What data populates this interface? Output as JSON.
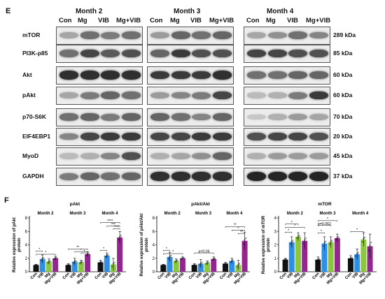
{
  "panel_e": {
    "letter": "E",
    "months": [
      "Month 2",
      "Month 3",
      "Month 4"
    ],
    "lanes": [
      "Con",
      "Mg",
      "VIB",
      "Mg+VIB"
    ],
    "rows": [
      {
        "label": "mTOR",
        "kda": "289 kDa",
        "intensity": [
          [
            0.3,
            0.55,
            0.5,
            0.55
          ],
          [
            0.35,
            0.6,
            0.55,
            0.6
          ],
          [
            0.3,
            0.4,
            0.55,
            0.45
          ]
        ]
      },
      {
        "label": "PI3K-p85",
        "kda": "85 kDa",
        "intensity": [
          [
            0.55,
            0.75,
            0.65,
            0.7
          ],
          [
            0.6,
            0.8,
            0.7,
            0.7
          ],
          [
            0.75,
            0.75,
            0.7,
            0.7
          ]
        ]
      },
      {
        "label": "Akt",
        "kda": "60 kDa",
        "intensity": [
          [
            0.85,
            0.85,
            0.85,
            0.85
          ],
          [
            0.8,
            0.8,
            0.8,
            0.85
          ],
          [
            0.55,
            0.55,
            0.6,
            0.6
          ]
        ]
      },
      {
        "label": "pAkt",
        "kda": "60 kDa",
        "intensity": [
          [
            0.3,
            0.5,
            0.6,
            0.55
          ],
          [
            0.35,
            0.45,
            0.5,
            0.75
          ],
          [
            0.2,
            0.25,
            0.5,
            0.8
          ]
        ]
      },
      {
        "label": "p70-S6K",
        "kda": "70 kDa",
        "intensity": [
          [
            0.55,
            0.6,
            0.5,
            0.6
          ],
          [
            0.6,
            0.55,
            0.45,
            0.6
          ],
          [
            0.15,
            0.25,
            0.35,
            0.3
          ]
        ]
      },
      {
        "label": "EIF4EBP1",
        "kda": "20 kDa",
        "intensity": [
          [
            0.45,
            0.75,
            0.8,
            0.8
          ],
          [
            0.75,
            0.75,
            0.8,
            0.8
          ],
          [
            0.7,
            0.75,
            0.75,
            0.7
          ]
        ]
      },
      {
        "label": "MyoD",
        "kda": "45 kDa",
        "intensity": [
          [
            0.2,
            0.25,
            0.45,
            0.7
          ],
          [
            0.25,
            0.3,
            0.4,
            0.6
          ],
          [
            0.25,
            0.35,
            0.35,
            0.35
          ]
        ]
      },
      {
        "label": "GAPDH",
        "kda": "37 kDa",
        "intensity": [
          [
            0.5,
            0.6,
            0.55,
            0.6
          ],
          [
            0.85,
            0.85,
            0.85,
            0.85
          ],
          [
            0.9,
            0.9,
            0.9,
            0.9
          ]
        ]
      }
    ]
  },
  "panel_f": {
    "letter": "F",
    "categories": [
      "Con",
      "VIB",
      "Mg",
      "Mg+VIB"
    ],
    "colors": {
      "Con": "#111111",
      "VIB": "#2e8fe6",
      "Mg": "#8cc63f",
      "Mg+VIB": "#93278f"
    },
    "charts": [
      {
        "title": "pAkt",
        "ylabel": "Relative expression of pAkt protein",
        "ylim": [
          0,
          8
        ],
        "yticks": [
          "0",
          "2",
          "4",
          "6",
          "8"
        ],
        "months": [
          "Month 2",
          "Month 3",
          "Month 4"
        ],
        "values": [
          [
            1.0,
            1.9,
            1.5,
            2.0
          ],
          [
            1.0,
            1.5,
            1.4,
            2.6
          ],
          [
            1.4,
            2.4,
            1.1,
            5.1
          ]
        ],
        "errors": [
          [
            0.1,
            0.6,
            0.4,
            0.3
          ],
          [
            0.2,
            0.5,
            0.3,
            0.4
          ],
          [
            0.3,
            0.4,
            0.9,
            0.9
          ]
        ],
        "annotations": [
          "*",
          "*",
          "**",
          "*",
          "*",
          "****",
          "***",
          "****",
          "*"
        ]
      },
      {
        "title": "pAkt/Akt",
        "ylabel": "Relative expression of pAkt/Akt protein",
        "ylim": [
          0,
          8
        ],
        "yticks": [
          "0",
          "2",
          "4",
          "6",
          "8"
        ],
        "months": [
          "Month 2",
          "Month 3",
          "Month 4"
        ],
        "values": [
          [
            1.0,
            2.2,
            1.6,
            2.0
          ],
          [
            1.0,
            1.2,
            1.3,
            1.9
          ],
          [
            1.2,
            1.6,
            1.0,
            4.6
          ]
        ],
        "errors": [
          [
            0.1,
            0.7,
            0.3,
            0.2
          ],
          [
            0.2,
            0.6,
            0.3,
            0.3
          ],
          [
            0.2,
            0.4,
            0.7,
            1.3
          ]
        ],
        "annotations": [
          "*",
          "*",
          "p=0.06",
          "**",
          "*",
          "**"
        ]
      },
      {
        "title": "mTOR",
        "ylabel": "Relative expression of mTOR protein",
        "ylim": [
          0,
          4
        ],
        "yticks": [
          "0",
          "1",
          "2",
          "3",
          "4"
        ],
        "months": [
          "Month 2",
          "Month 3",
          "Month 4"
        ],
        "values": [
          [
            0.9,
            2.2,
            2.6,
            2.3
          ],
          [
            0.9,
            2.1,
            2.2,
            2.5
          ],
          [
            1.0,
            1.3,
            2.4,
            1.9
          ]
        ],
        "errors": [
          [
            0.1,
            0.4,
            0.3,
            0.6
          ],
          [
            0.2,
            0.5,
            0.4,
            0.3
          ],
          [
            0.2,
            0.4,
            0.5,
            0.9
          ]
        ],
        "annotations": [
          "*",
          "*",
          "*",
          "p=0.062",
          "*",
          "*",
          "*"
        ]
      }
    ]
  }
}
